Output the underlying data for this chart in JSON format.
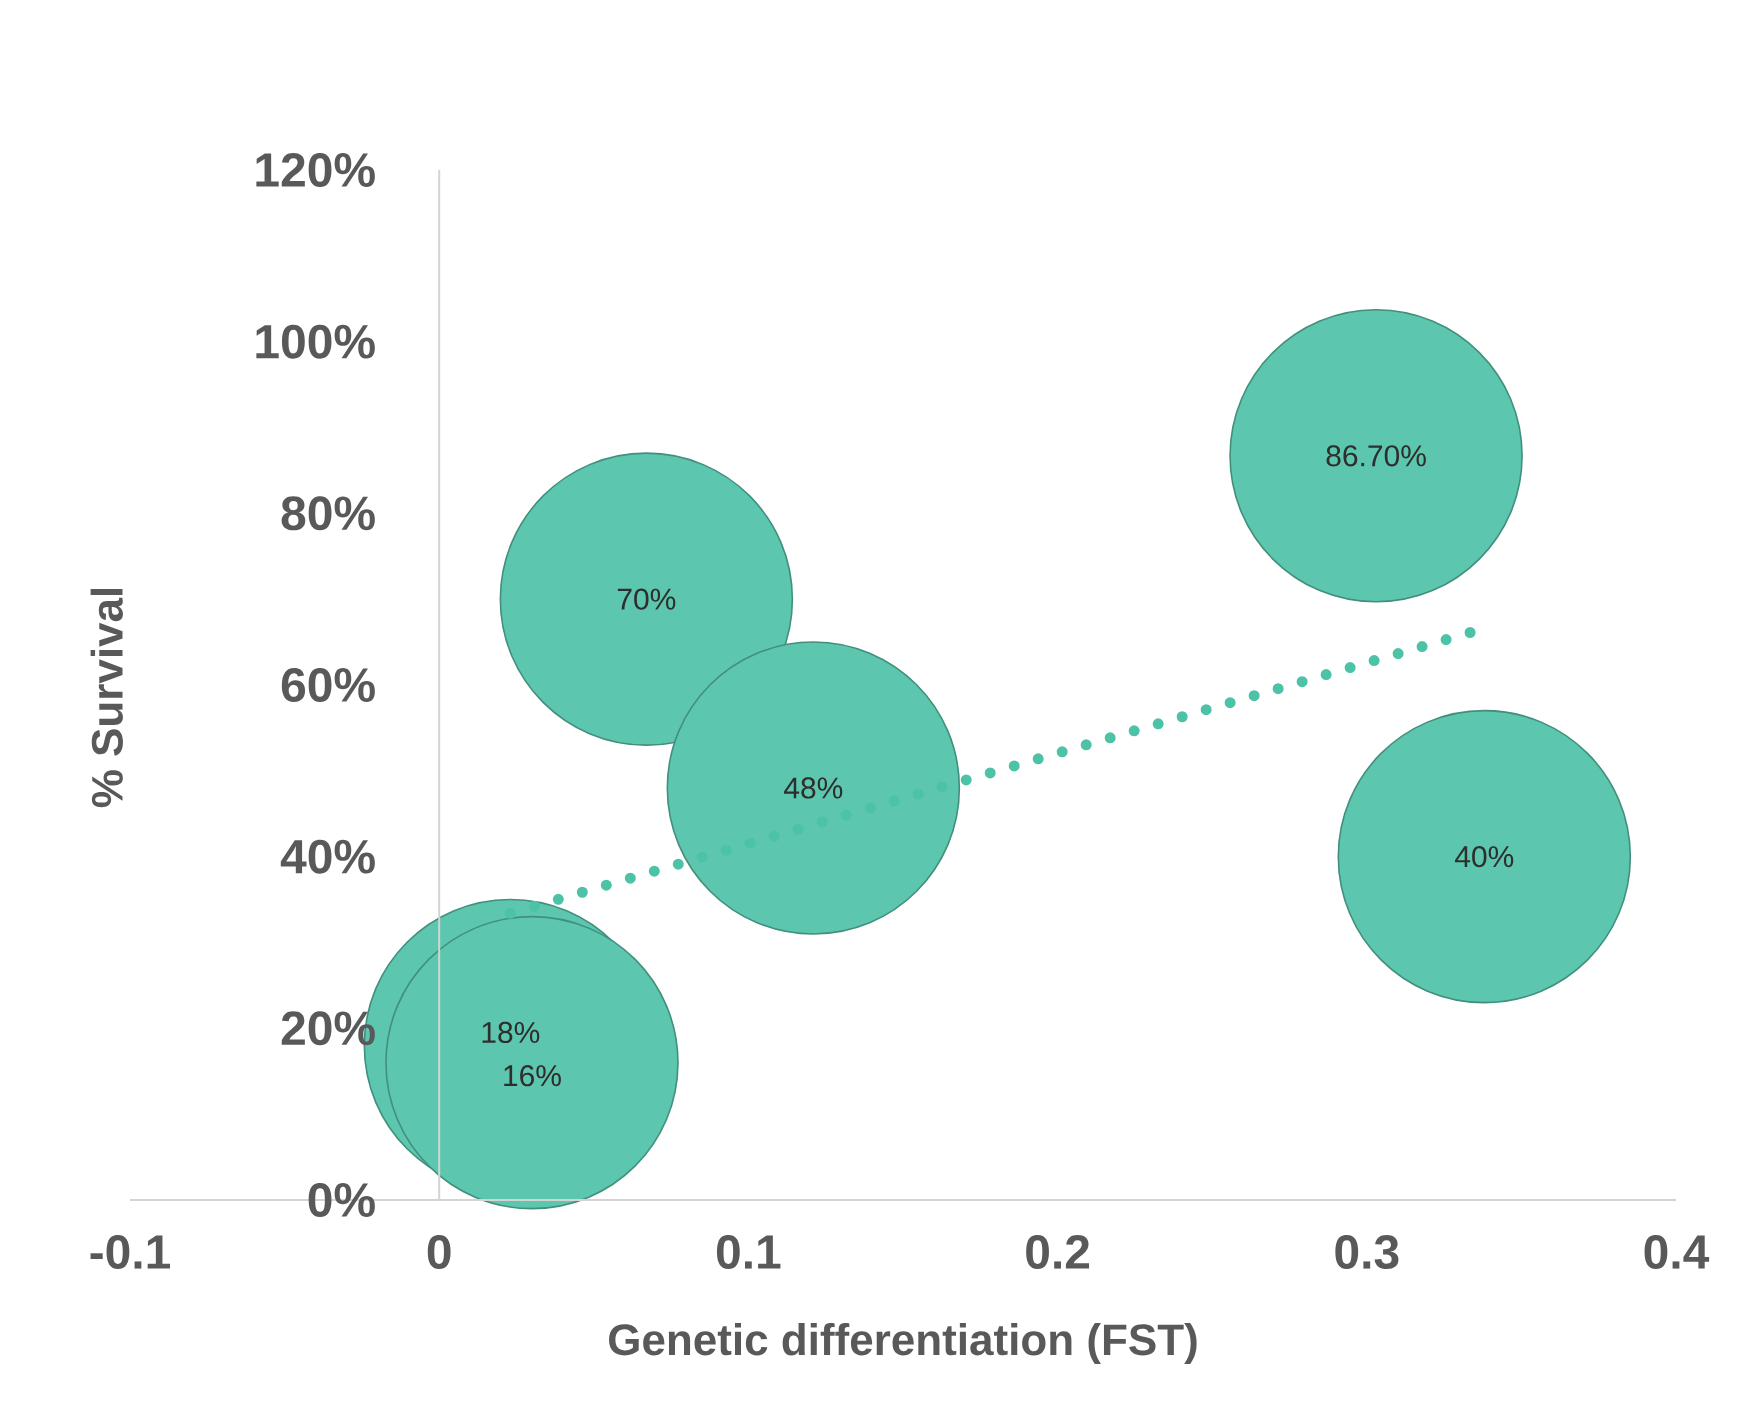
{
  "chart_data": {
    "type": "bubble",
    "xlabel": "Genetic differentiation (FST)",
    "ylabel": "% Survival",
    "xlim": [
      -0.1,
      0.4
    ],
    "xticks": [
      -0.1,
      0,
      0.1,
      0.2,
      0.3,
      0.4
    ],
    "ylim": [
      0,
      120
    ],
    "yticks": [
      {
        "value": 0,
        "label": "0%"
      },
      {
        "value": 20,
        "label": "20%"
      },
      {
        "value": 40,
        "label": "40%"
      },
      {
        "value": 60,
        "label": "60%"
      },
      {
        "value": 80,
        "label": "80%"
      },
      {
        "value": 100,
        "label": "100%"
      },
      {
        "value": 120,
        "label": "120%"
      }
    ],
    "series": [
      {
        "color": "#5cc7ae",
        "x": [
          0.023,
          0.03,
          0.067,
          0.121,
          0.303,
          0.338
        ],
        "values": [
          18,
          16,
          70,
          48,
          86.7,
          40
        ],
        "sizes": [
          1,
          1,
          1,
          1,
          1,
          1
        ],
        "value_labels": [
          "18%",
          "16%",
          "70%",
          "48%",
          "86.70%",
          "40%"
        ]
      },
      {
        "type": "line",
        "color": "#4cc3a6",
        "line_style": "dotted",
        "x": [
          0.023,
          0.338
        ],
        "values": [
          33.4,
          66.6
        ]
      }
    ]
  }
}
